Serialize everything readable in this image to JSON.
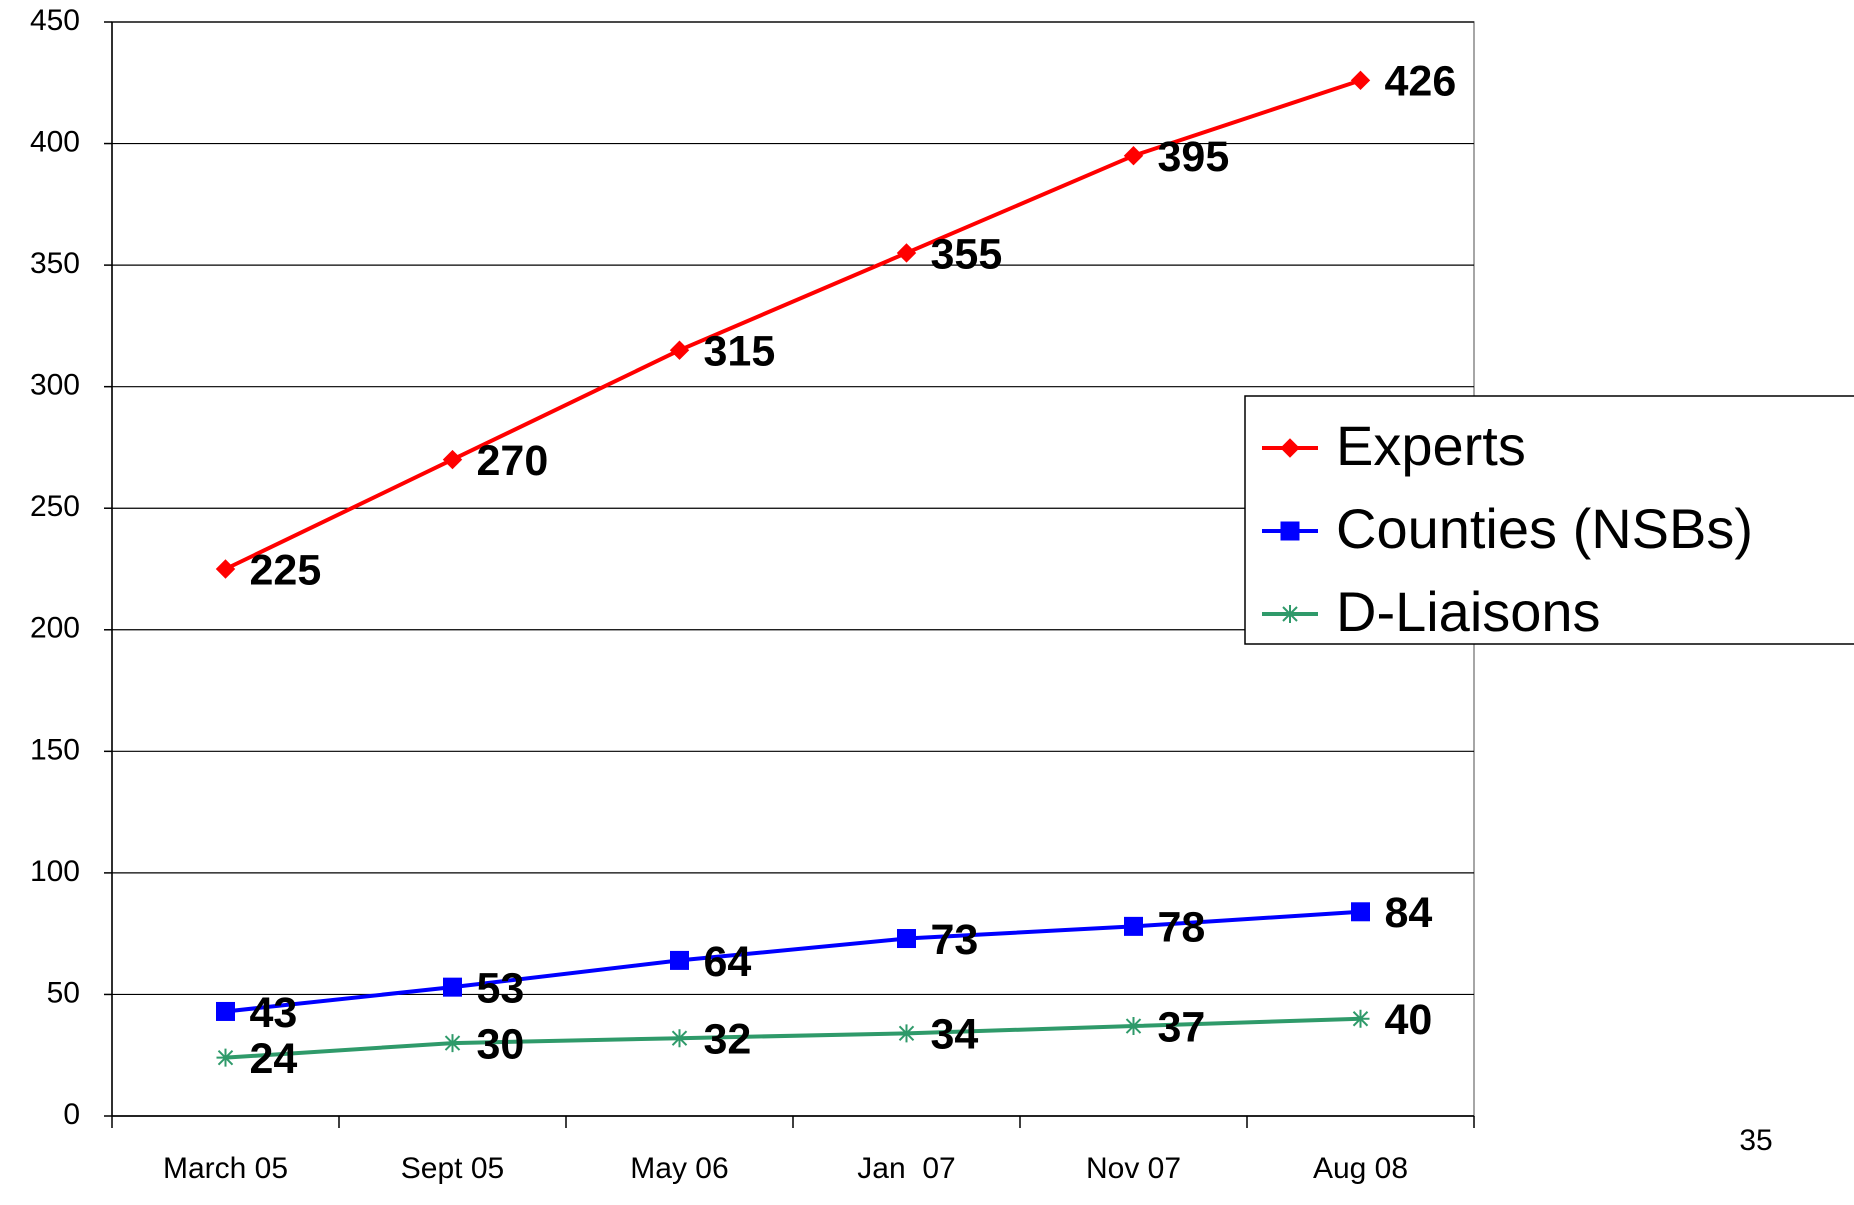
{
  "chart_data": {
    "type": "line",
    "categories": [
      "March 05",
      "Sept 05",
      "May 06",
      "Jan  07",
      "Nov 07",
      "Aug 08"
    ],
    "series": [
      {
        "name": "Experts",
        "color": "#ff0000",
        "marker": "diamond",
        "values": [
          225,
          270,
          315,
          355,
          395,
          426
        ]
      },
      {
        "name": "Counties (NSBs)",
        "color": "#0000ff",
        "marker": "square",
        "values": [
          43,
          53,
          64,
          73,
          78,
          84
        ]
      },
      {
        "name": "D-Liaisons",
        "color": "#2f9a6a",
        "marker": "asterisk",
        "values": [
          24,
          30,
          32,
          34,
          37,
          40
        ]
      }
    ],
    "ylim": [
      0,
      450
    ],
    "yticks": [
      0,
      50,
      100,
      150,
      200,
      250,
      300,
      350,
      400,
      450
    ],
    "grid": true,
    "legend": "right",
    "page_number": "35"
  }
}
